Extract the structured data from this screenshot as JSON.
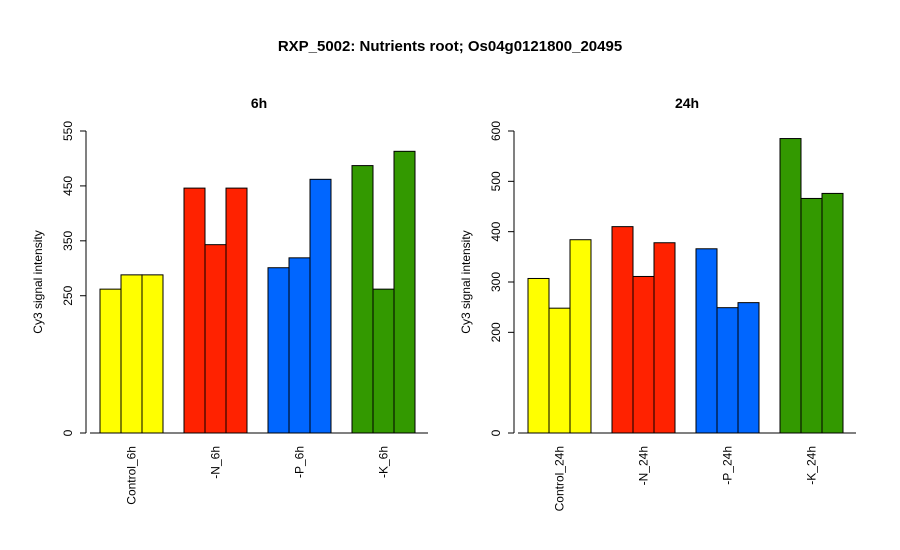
{
  "title": "RXP_5002: Nutrients root; Os04g0121800_20495",
  "chart_data": [
    {
      "type": "bar",
      "title": "6h",
      "ylabel": "Cy3 signal intensity",
      "ylim": [
        0,
        550
      ],
      "yticks": [
        0,
        250,
        350,
        450,
        550
      ],
      "groups": [
        {
          "label": "Control_6h",
          "color": "#ffff00",
          "values": [
            262,
            288,
            288
          ]
        },
        {
          "label": "-N_6h",
          "color": "#ff2200",
          "values": [
            446,
            343,
            446
          ]
        },
        {
          "label": "-P_6h",
          "color": "#0066ff",
          "values": [
            301,
            319,
            462
          ]
        },
        {
          "label": "-K_6h",
          "color": "#339900",
          "values": [
            487,
            262,
            513
          ]
        }
      ]
    },
    {
      "type": "bar",
      "title": "24h",
      "ylabel": "Cy3 signal intensity",
      "ylim": [
        0,
        600
      ],
      "yticks": [
        0,
        200,
        300,
        400,
        500,
        600
      ],
      "groups": [
        {
          "label": "Control_24h",
          "color": "#ffff00",
          "values": [
            307,
            248,
            384
          ]
        },
        {
          "label": "-N_24h",
          "color": "#ff2200",
          "values": [
            410,
            311,
            378
          ]
        },
        {
          "label": "-P_24h",
          "color": "#0066ff",
          "values": [
            366,
            249,
            259
          ]
        },
        {
          "label": "-K_24h",
          "color": "#339900",
          "values": [
            585,
            466,
            476
          ]
        }
      ]
    }
  ]
}
